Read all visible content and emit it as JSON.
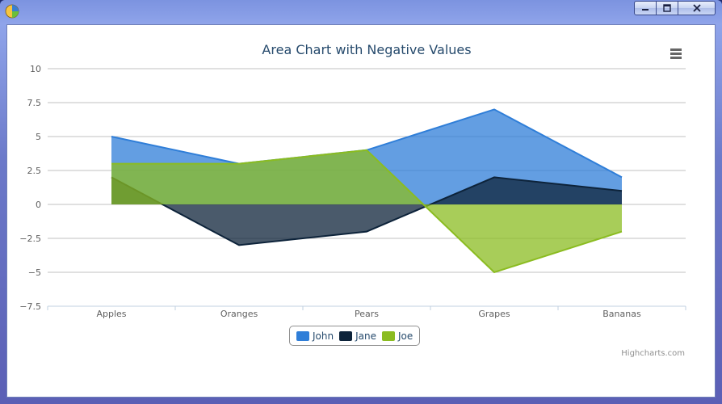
{
  "window": {
    "icon": "pie-chart-icon",
    "controls": [
      "minimize-icon",
      "maximize-icon",
      "close-icon"
    ]
  },
  "chart_data": {
    "type": "area",
    "title": "Area Chart with Negative Values",
    "categories": [
      "Apples",
      "Oranges",
      "Pears",
      "Grapes",
      "Bananas"
    ],
    "series": [
      {
        "name": "John",
        "values": [
          5,
          3,
          4,
          7,
          2
        ],
        "color": "#4572a7"
      },
      {
        "name": "Jane",
        "values": [
          2,
          -3,
          -2,
          2,
          1
        ],
        "color": "#0d233a"
      },
      {
        "name": "Joe",
        "values": [
          3,
          3,
          4,
          -5,
          -2
        ],
        "color": "#8bbc21"
      }
    ],
    "y_ticks": [
      {
        "value": 10,
        "label": "10"
      },
      {
        "value": 7.5,
        "label": "7.5"
      },
      {
        "value": 5,
        "label": "5"
      },
      {
        "value": 2.5,
        "label": "2.5"
      },
      {
        "value": 0,
        "label": "0"
      },
      {
        "value": -2.5,
        "label": "−2.5"
      },
      {
        "value": -5,
        "label": "−5"
      },
      {
        "value": -7.5,
        "label": "−7.5"
      }
    ],
    "ylim": [
      -7.5,
      10
    ],
    "xlabel": "",
    "ylabel": "",
    "grid": true,
    "legend": "bottom-center",
    "fill_colors": [
      "#2f7ed8",
      "#0d233a",
      "#8bbc21"
    ],
    "title_color": "#274b6d"
  },
  "credits": "Highcharts.com",
  "menu_icon": "menu-icon"
}
